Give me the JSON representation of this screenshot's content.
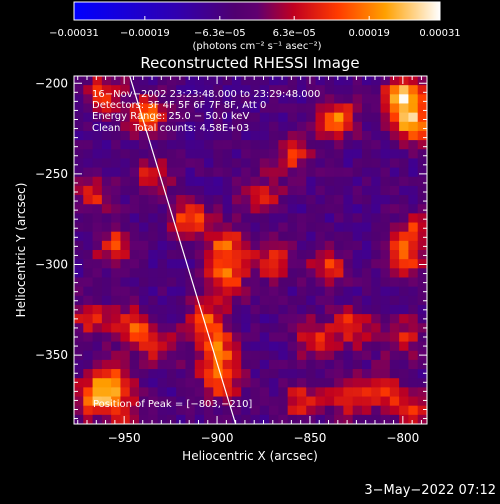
{
  "chart_data": {
    "type": "heatmap",
    "title": "Reconstructed RHESSI Image",
    "xlabel": "Heliocentric X (arcsec)",
    "ylabel": "Heliocentric Y (arcsec)",
    "xlim": [
      -977,
      -787
    ],
    "ylim": [
      -388,
      -196
    ],
    "x_ticks": [
      -950,
      -900,
      -850,
      -800
    ],
    "y_ticks": [
      -200,
      -250,
      -300,
      -350
    ],
    "x_tick_labels": [
      "−950",
      "−900",
      "−850",
      "−800"
    ],
    "y_tick_labels": [
      "−200",
      "−250",
      "−300",
      "−350"
    ],
    "colorbar": {
      "range": [
        -0.00031,
        0.00031
      ],
      "ticks": [
        -0.00031,
        -0.00019,
        -6.3e-05,
        6.3e-05,
        0.00019,
        0.00031
      ],
      "tick_labels": [
        "−0.00031",
        "−0.00019",
        "−6.3e−05",
        "6.3e−05",
        "0.00019",
        "0.00031"
      ],
      "units": "(photons cm⁻² s⁻¹ asec⁻²)"
    },
    "annotations": [
      "16−Nov−2002 23:23:48.000 to 23:29:48.000",
      "Detectors: 3F 4F 5F 6F 7F 8F, Att 0",
      "Energy Range: 25.0 − 50.0 keV",
      "Clean    Total counts: 4.58E+03"
    ],
    "peak_label": "Position of Peak = [−803,−210]",
    "limb_line": [
      [
        -947,
        -196
      ],
      [
        -890,
        -388
      ]
    ],
    "hot_spots": [
      {
        "x": -800,
        "y": -207,
        "value": 0.00031
      },
      {
        "x": -795,
        "y": -222,
        "value": 0.00027
      },
      {
        "x": -835,
        "y": -220,
        "value": 0.00022
      },
      {
        "x": -860,
        "y": -240,
        "value": 0.00015
      },
      {
        "x": -937,
        "y": -218,
        "value": 0.00021
      },
      {
        "x": -960,
        "y": -206,
        "value": 0.00018
      },
      {
        "x": -935,
        "y": -252,
        "value": 0.00014
      },
      {
        "x": -967,
        "y": -262,
        "value": 0.00014
      },
      {
        "x": -955,
        "y": -290,
        "value": 0.00017
      },
      {
        "x": -968,
        "y": -330,
        "value": 0.00014
      },
      {
        "x": -945,
        "y": -335,
        "value": 0.00018
      },
      {
        "x": -930,
        "y": -345,
        "value": 0.00013
      },
      {
        "x": -965,
        "y": -373,
        "value": 0.00024
      },
      {
        "x": -955,
        "y": -365,
        "value": 0.0002
      },
      {
        "x": -915,
        "y": -275,
        "value": 0.0002
      },
      {
        "x": -895,
        "y": -290,
        "value": 0.00022
      },
      {
        "x": -895,
        "y": -308,
        "value": 0.00019
      },
      {
        "x": -905,
        "y": -330,
        "value": 0.00018
      },
      {
        "x": -900,
        "y": -348,
        "value": 0.00022
      },
      {
        "x": -898,
        "y": -365,
        "value": 0.0002
      },
      {
        "x": -876,
        "y": -262,
        "value": 0.00016
      },
      {
        "x": -870,
        "y": -298,
        "value": 0.00015
      },
      {
        "x": -840,
        "y": -302,
        "value": 0.00017
      },
      {
        "x": -848,
        "y": -342,
        "value": 0.00016
      },
      {
        "x": -855,
        "y": -375,
        "value": 0.00015
      },
      {
        "x": -828,
        "y": -335,
        "value": 0.00017
      },
      {
        "x": -830,
        "y": -372,
        "value": 0.00017
      },
      {
        "x": -800,
        "y": -296,
        "value": 0.00019
      },
      {
        "x": -793,
        "y": -282,
        "value": 0.00015
      },
      {
        "x": -800,
        "y": -340,
        "value": 0.00014
      },
      {
        "x": -812,
        "y": -370,
        "value": 0.00015
      },
      {
        "x": -795,
        "y": -380,
        "value": 0.00016
      },
      {
        "x": -950,
        "y": -385,
        "value": 0.00013
      }
    ]
  },
  "footer": {
    "date": "3−May−2022 07:12"
  }
}
